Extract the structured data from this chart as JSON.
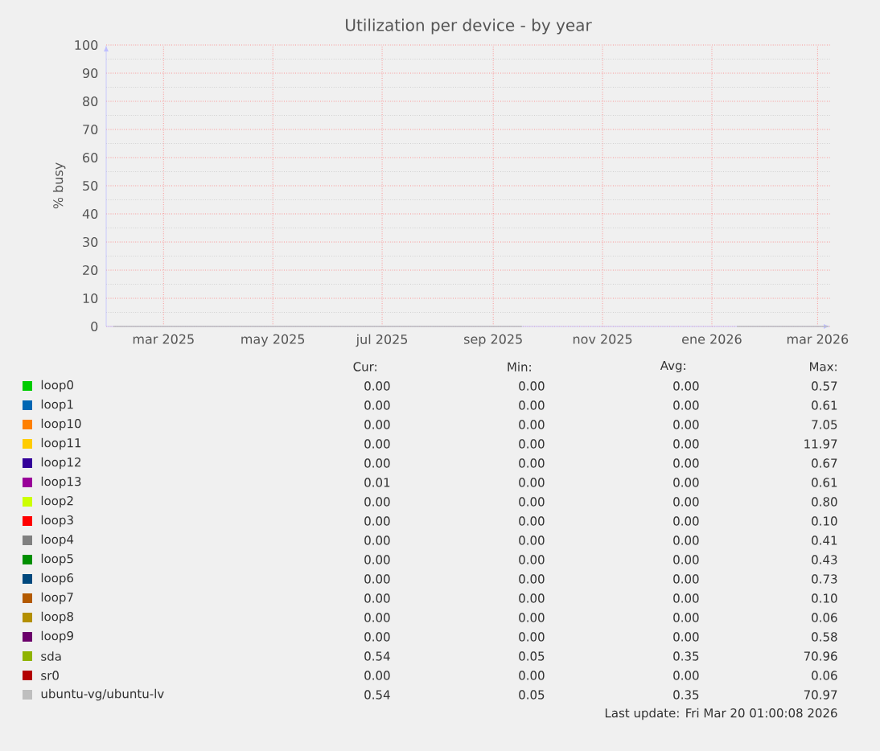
{
  "chart_data": {
    "type": "line",
    "title": "Utilization per device - by year",
    "ylabel": "% busy",
    "x": [
      "2025-02-01",
      "2025-09-17",
      "2025-09-18",
      "2026-01-14",
      "2026-01-15",
      "2026-03-07"
    ],
    "xlim": [
      "2025-01-28",
      "2026-03-08"
    ],
    "xticks": [
      {
        "value": "2025-03-01",
        "label": "mar 2025"
      },
      {
        "value": "2025-05-01",
        "label": "may 2025"
      },
      {
        "value": "2025-07-01",
        "label": "jul 2025"
      },
      {
        "value": "2025-09-01",
        "label": "sep 2025"
      },
      {
        "value": "2025-11-01",
        "label": "nov 2025"
      },
      {
        "value": "2026-01-01",
        "label": "ene 2026"
      },
      {
        "value": "2026-03-01",
        "label": "mar 2026"
      }
    ],
    "ylim": [
      0,
      100
    ],
    "yticks": [
      0,
      10,
      20,
      30,
      40,
      50,
      60,
      70,
      80,
      90,
      100
    ],
    "grid": true,
    "legend": "bottom",
    "marker": "none",
    "line_style": "solid",
    "series": [
      {
        "name": "loop0",
        "color": "#00cc00",
        "values": [
          null,
          null,
          null,
          null,
          null,
          null
        ]
      },
      {
        "name": "loop1",
        "color": "#0066b3",
        "values": [
          null,
          null,
          null,
          null,
          null,
          null
        ]
      },
      {
        "name": "loop10",
        "color": "#ff8000",
        "values": [
          null,
          null,
          null,
          null,
          null,
          null
        ]
      },
      {
        "name": "loop11",
        "color": "#ffcc00",
        "values": [
          null,
          null,
          null,
          null,
          null,
          null
        ]
      },
      {
        "name": "loop12",
        "color": "#330099",
        "values": [
          null,
          null,
          null,
          null,
          null,
          null
        ]
      },
      {
        "name": "loop13",
        "color": "#990099",
        "values": [
          null,
          null,
          null,
          null,
          null,
          null
        ]
      },
      {
        "name": "loop2",
        "color": "#ccff00",
        "values": [
          null,
          null,
          null,
          null,
          null,
          null
        ]
      },
      {
        "name": "loop3",
        "color": "#ff0000",
        "values": [
          null,
          null,
          null,
          null,
          null,
          null
        ]
      },
      {
        "name": "loop4",
        "color": "#808080",
        "values": [
          null,
          null,
          null,
          null,
          null,
          null
        ]
      },
      {
        "name": "loop5",
        "color": "#008f00",
        "values": [
          null,
          null,
          null,
          null,
          null,
          null
        ]
      },
      {
        "name": "loop6",
        "color": "#00487d",
        "values": [
          null,
          null,
          null,
          null,
          null,
          null
        ]
      },
      {
        "name": "loop7",
        "color": "#b35a00",
        "values": [
          null,
          null,
          null,
          null,
          null,
          null
        ]
      },
      {
        "name": "loop8",
        "color": "#b38f00",
        "values": [
          null,
          null,
          null,
          null,
          null,
          null
        ]
      },
      {
        "name": "loop9",
        "color": "#6b006b",
        "values": [
          null,
          null,
          null,
          null,
          null,
          null
        ]
      },
      {
        "name": "sda",
        "color": "#8fb300",
        "values": [
          null,
          null,
          null,
          null,
          null,
          null
        ]
      },
      {
        "name": "sr0",
        "color": "#b30000",
        "values": [
          null,
          null,
          null,
          null,
          null,
          null
        ]
      },
      {
        "name": "ubuntu-vg/ubuntu-lv",
        "color": "#bebebe",
        "values": [
          0,
          0,
          null,
          null,
          0,
          0
        ]
      }
    ],
    "annotations": [
      "Cur:",
      "Min:",
      "Avg:",
      "Max:",
      "0.00",
      "0.00",
      "0.00",
      "0.57",
      "0.00",
      "0.00",
      "0.00",
      "0.61",
      "0.00",
      "0.00",
      "0.00",
      "7.05",
      "0.00",
      "0.00",
      "0.00",
      "11.97",
      "0.00",
      "0.00",
      "0.00",
      "0.67",
      "0.01",
      "0.00",
      "0.00",
      "0.61",
      "0.00",
      "0.00",
      "0.00",
      "0.80",
      "0.00",
      "0.00",
      "0.00",
      "0.10",
      "0.00",
      "0.00",
      "0.00",
      "0.41",
      "0.00",
      "0.00",
      "0.00",
      "0.43",
      "0.00",
      "0.00",
      "0.00",
      "0.73",
      "0.00",
      "0.00",
      "0.00",
      "0.10",
      "0.00",
      "0.00",
      "0.00",
      "0.06",
      "0.00",
      "0.00",
      "0.00",
      "0.58",
      "0.54",
      "0.05",
      "0.35",
      "70.96",
      "0.00",
      "0.00",
      "0.00",
      "0.06",
      "0.54",
      "0.05",
      "0.35",
      "70.97",
      "Last update: Fri Mar 20 01:00:08 2026"
    ]
  }
}
